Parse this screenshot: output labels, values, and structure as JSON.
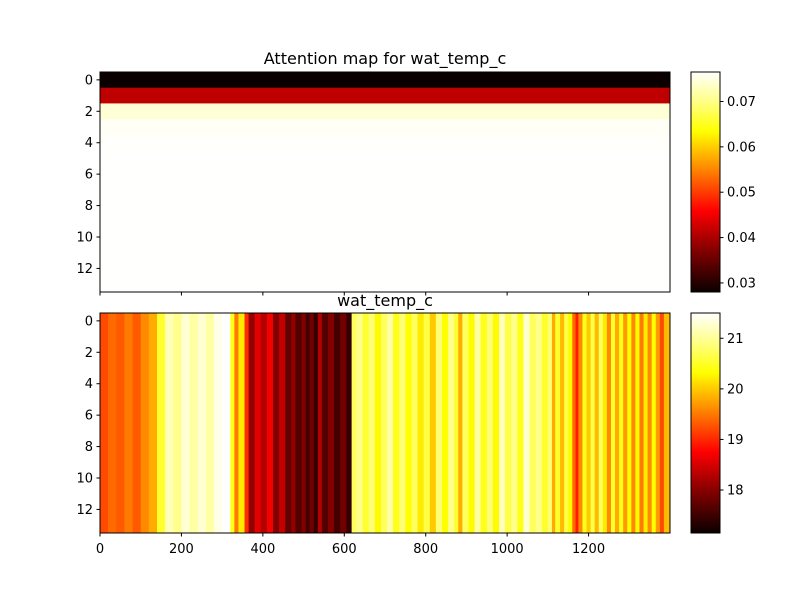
{
  "chart_data": [
    {
      "type": "heatmap",
      "title": "Attention map for wat_temp_c",
      "xlim": [
        0,
        1400
      ],
      "ylim": [
        13.5,
        -0.5
      ],
      "y_ticks": [
        0,
        2,
        4,
        6,
        8,
        10,
        12
      ],
      "x_ticks": [
        0,
        200,
        400,
        600,
        800,
        1000,
        1200
      ],
      "x_tick_labels_shown": false,
      "colormap": "hot",
      "colorbar": {
        "min": 0.028,
        "max": 0.0765,
        "ticks": [
          0.03,
          0.04,
          0.05,
          0.06,
          0.07
        ],
        "tick_labels": [
          "0.03",
          "0.04",
          "0.05",
          "0.06",
          "0.07"
        ]
      },
      "row_values": [
        0.028,
        0.0405,
        0.0745,
        0.076,
        0.0763,
        0.0764,
        0.0764,
        0.0764,
        0.0764,
        0.0764,
        0.0764,
        0.0764,
        0.0764,
        0.0764
      ]
    },
    {
      "type": "heatmap",
      "title": "wat_temp_c",
      "xlim": [
        0,
        1400
      ],
      "ylim": [
        13.5,
        -0.5
      ],
      "y_ticks": [
        0,
        2,
        4,
        6,
        8,
        10,
        12
      ],
      "x_ticks": [
        0,
        200,
        400,
        600,
        800,
        1000,
        1200
      ],
      "x_tick_labels": [
        "0",
        "200",
        "400",
        "600",
        "800",
        "1000",
        "1200"
      ],
      "colormap": "hot",
      "colorbar": {
        "min": 17.15,
        "max": 21.5,
        "ticks": [
          18,
          19,
          20,
          21
        ],
        "tick_labels": [
          "18",
          "19",
          "20",
          "21"
        ]
      },
      "segments": [
        {
          "x": 0,
          "value": 19.2
        },
        {
          "x": 20,
          "value": 19.4
        },
        {
          "x": 40,
          "value": 19.3
        },
        {
          "x": 60,
          "value": 19.5
        },
        {
          "x": 80,
          "value": 19.3
        },
        {
          "x": 100,
          "value": 19.6
        },
        {
          "x": 120,
          "value": 19.8
        },
        {
          "x": 140,
          "value": 20.6
        },
        {
          "x": 160,
          "value": 21.2
        },
        {
          "x": 180,
          "value": 21.0
        },
        {
          "x": 200,
          "value": 21.3
        },
        {
          "x": 220,
          "value": 21.1
        },
        {
          "x": 240,
          "value": 21.3
        },
        {
          "x": 260,
          "value": 21.1
        },
        {
          "x": 280,
          "value": 21.4
        },
        {
          "x": 300,
          "value": 21.5
        },
        {
          "x": 320,
          "value": 20.5
        },
        {
          "x": 330,
          "value": 19.5
        },
        {
          "x": 340,
          "value": 20.2
        },
        {
          "x": 355,
          "value": 19.0
        },
        {
          "x": 365,
          "value": 18.0
        },
        {
          "x": 380,
          "value": 18.5
        },
        {
          "x": 395,
          "value": 18.2
        },
        {
          "x": 410,
          "value": 18.6
        },
        {
          "x": 425,
          "value": 17.9
        },
        {
          "x": 440,
          "value": 18.3
        },
        {
          "x": 455,
          "value": 17.7
        },
        {
          "x": 470,
          "value": 18.0
        },
        {
          "x": 480,
          "value": 17.6
        },
        {
          "x": 495,
          "value": 17.9
        },
        {
          "x": 505,
          "value": 17.5
        },
        {
          "x": 515,
          "value": 17.8
        },
        {
          "x": 525,
          "value": 17.4
        },
        {
          "x": 535,
          "value": 18.2
        },
        {
          "x": 545,
          "value": 17.6
        },
        {
          "x": 560,
          "value": 17.9
        },
        {
          "x": 575,
          "value": 17.5
        },
        {
          "x": 590,
          "value": 17.8
        },
        {
          "x": 605,
          "value": 17.4
        },
        {
          "x": 618,
          "value": 20.8
        },
        {
          "x": 630,
          "value": 21.0
        },
        {
          "x": 645,
          "value": 20.6
        },
        {
          "x": 660,
          "value": 20.9
        },
        {
          "x": 675,
          "value": 20.3
        },
        {
          "x": 690,
          "value": 20.8
        },
        {
          "x": 705,
          "value": 21.1
        },
        {
          "x": 720,
          "value": 20.5
        },
        {
          "x": 735,
          "value": 20.9
        },
        {
          "x": 750,
          "value": 20.4
        },
        {
          "x": 765,
          "value": 20.8
        },
        {
          "x": 780,
          "value": 20.2
        },
        {
          "x": 795,
          "value": 20.7
        },
        {
          "x": 810,
          "value": 20.0
        },
        {
          "x": 825,
          "value": 20.9
        },
        {
          "x": 840,
          "value": 20.4
        },
        {
          "x": 855,
          "value": 21.0
        },
        {
          "x": 870,
          "value": 20.6
        },
        {
          "x": 880,
          "value": 19.8
        },
        {
          "x": 890,
          "value": 20.8
        },
        {
          "x": 905,
          "value": 20.3
        },
        {
          "x": 920,
          "value": 21.1
        },
        {
          "x": 935,
          "value": 20.5
        },
        {
          "x": 950,
          "value": 20.9
        },
        {
          "x": 965,
          "value": 20.3
        },
        {
          "x": 980,
          "value": 21.2
        },
        {
          "x": 995,
          "value": 20.7
        },
        {
          "x": 1010,
          "value": 21.0
        },
        {
          "x": 1025,
          "value": 20.5
        },
        {
          "x": 1040,
          "value": 21.3
        },
        {
          "x": 1055,
          "value": 20.8
        },
        {
          "x": 1070,
          "value": 21.0
        },
        {
          "x": 1085,
          "value": 20.6
        },
        {
          "x": 1100,
          "value": 20.9
        },
        {
          "x": 1110,
          "value": 19.8
        },
        {
          "x": 1118,
          "value": 20.6
        },
        {
          "x": 1130,
          "value": 19.9
        },
        {
          "x": 1140,
          "value": 20.7
        },
        {
          "x": 1150,
          "value": 20.3
        },
        {
          "x": 1160,
          "value": 19.4
        },
        {
          "x": 1168,
          "value": 18.9
        },
        {
          "x": 1175,
          "value": 19.6
        },
        {
          "x": 1185,
          "value": 20.5
        },
        {
          "x": 1195,
          "value": 20.0
        },
        {
          "x": 1205,
          "value": 20.7
        },
        {
          "x": 1215,
          "value": 19.9
        },
        {
          "x": 1225,
          "value": 20.8
        },
        {
          "x": 1235,
          "value": 20.2
        },
        {
          "x": 1245,
          "value": 19.6
        },
        {
          "x": 1255,
          "value": 20.6
        },
        {
          "x": 1265,
          "value": 19.8
        },
        {
          "x": 1275,
          "value": 20.5
        },
        {
          "x": 1285,
          "value": 19.7
        },
        {
          "x": 1295,
          "value": 20.4
        },
        {
          "x": 1305,
          "value": 19.6
        },
        {
          "x": 1315,
          "value": 20.3
        },
        {
          "x": 1325,
          "value": 19.5
        },
        {
          "x": 1335,
          "value": 20.2
        },
        {
          "x": 1345,
          "value": 19.6
        },
        {
          "x": 1355,
          "value": 20.4
        },
        {
          "x": 1365,
          "value": 19.7
        },
        {
          "x": 1375,
          "value": 19.2
        },
        {
          "x": 1385,
          "value": 19.9
        }
      ]
    }
  ]
}
